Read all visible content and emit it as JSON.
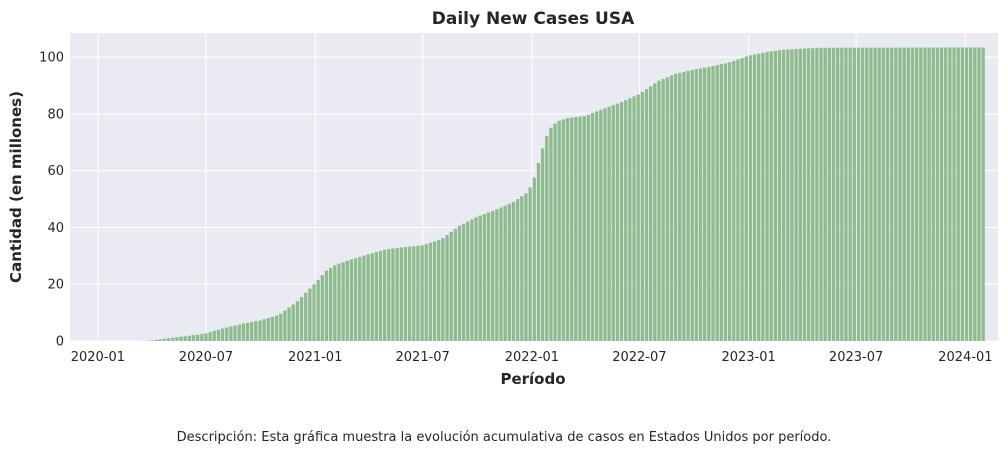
{
  "chart_data": {
    "type": "bar",
    "title": "Daily New Cases USA",
    "xlabel": "Período",
    "ylabel": "Cantidad (en millones)",
    "ylim": [
      0,
      108.5
    ],
    "y_ticks": [
      0,
      20,
      40,
      60,
      80,
      100
    ],
    "x_range": [
      "2019-11-15",
      "2024-02-25"
    ],
    "x_ticks": [
      "2020-01",
      "2020-07",
      "2021-01",
      "2021-07",
      "2022-01",
      "2022-07",
      "2023-01",
      "2023-07",
      "2024-01"
    ],
    "grid": true,
    "bar_color": "#8fbc8f",
    "background_color": "#eaeaf2",
    "bar_interval": "weekly",
    "first_bar_date": "2020-01-22",
    "last_bar_date": "2024-01-31",
    "keyframes": [
      [
        "2020-01-22",
        0.0
      ],
      [
        "2020-03-15",
        0.003
      ],
      [
        "2020-04-01",
        0.2
      ],
      [
        "2020-04-15",
        0.6
      ],
      [
        "2020-05-01",
        1.1
      ],
      [
        "2020-06-01",
        1.8
      ],
      [
        "2020-07-01",
        2.7
      ],
      [
        "2020-08-01",
        4.6
      ],
      [
        "2020-09-01",
        6.1
      ],
      [
        "2020-10-01",
        7.3
      ],
      [
        "2020-11-01",
        9.2
      ],
      [
        "2020-12-01",
        13.8
      ],
      [
        "2021-01-01",
        20.4
      ],
      [
        "2021-01-20",
        24.8
      ],
      [
        "2021-02-05",
        26.9
      ],
      [
        "2021-03-01",
        28.6
      ],
      [
        "2021-04-01",
        30.6
      ],
      [
        "2021-05-01",
        32.3
      ],
      [
        "2021-06-01",
        33.1
      ],
      [
        "2021-07-01",
        33.7
      ],
      [
        "2021-08-01",
        35.8
      ],
      [
        "2021-09-01",
        40.6
      ],
      [
        "2021-10-01",
        43.8
      ],
      [
        "2021-11-01",
        46.2
      ],
      [
        "2021-12-01",
        49.0
      ],
      [
        "2021-12-22",
        52.0
      ],
      [
        "2022-01-01",
        55.0
      ],
      [
        "2022-01-08",
        59.5
      ],
      [
        "2022-01-15",
        65.0
      ],
      [
        "2022-01-22",
        70.0
      ],
      [
        "2022-01-29",
        74.0
      ],
      [
        "2022-02-05",
        76.0
      ],
      [
        "2022-02-15",
        77.5
      ],
      [
        "2022-03-01",
        78.5
      ],
      [
        "2022-04-01",
        79.3
      ],
      [
        "2022-05-01",
        81.8
      ],
      [
        "2022-06-01",
        84.2
      ],
      [
        "2022-07-01",
        87.0
      ],
      [
        "2022-08-01",
        91.5
      ],
      [
        "2022-09-01",
        94.2
      ],
      [
        "2022-10-01",
        95.6
      ],
      [
        "2022-11-01",
        96.8
      ],
      [
        "2022-12-01",
        98.2
      ],
      [
        "2023-01-01",
        100.5
      ],
      [
        "2023-02-01",
        101.8
      ],
      [
        "2023-03-01",
        102.6
      ],
      [
        "2023-04-01",
        103.0
      ],
      [
        "2023-05-01",
        103.3
      ],
      [
        "2024-01-31",
        103.4
      ]
    ]
  },
  "description": "Descripción: Esta gráfica muestra la evolución acumulativa de casos en Estados Unidos por período."
}
